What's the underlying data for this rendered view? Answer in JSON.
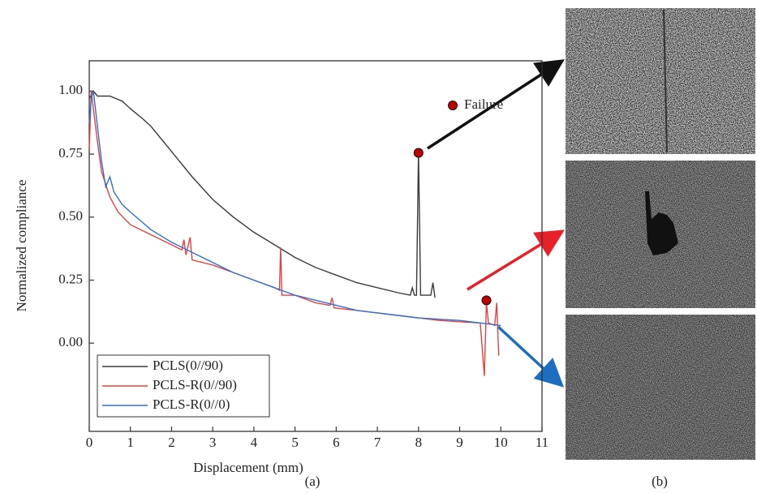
{
  "chart_data": {
    "type": "line",
    "xlabel": "Displacement (mm)",
    "ylabel": "Normalized compliance",
    "xlim": [
      0,
      11
    ],
    "ylim": [
      -0.35,
      1.12
    ],
    "xticks": [
      0,
      1,
      2,
      3,
      4,
      5,
      6,
      7,
      8,
      9,
      10,
      11
    ],
    "yticks": [
      {
        "value": 0,
        "label": "0.00"
      },
      {
        "value": 0.25,
        "label": "0.25"
      },
      {
        "value": 0.5,
        "label": "0.50"
      },
      {
        "value": 0.75,
        "label": "0.75"
      },
      {
        "value": 1,
        "label": "1.00"
      }
    ],
    "legend": "lower left",
    "series": [
      {
        "name": "PCLS(0//90)",
        "color": "#3a3a3a",
        "x": [
          0,
          0.1,
          0.2,
          0.5,
          0.8,
          1.0,
          1.3,
          1.5,
          1.8,
          2.0,
          2.5,
          3.0,
          3.5,
          4.0,
          4.5,
          5.0,
          5.5,
          6.0,
          6.5,
          7.0,
          7.5,
          7.8,
          7.85,
          7.9,
          7.95,
          8.0,
          8.05,
          8.3,
          8.35,
          8.4
        ],
        "values": [
          0.97,
          1.0,
          0.98,
          0.98,
          0.96,
          0.93,
          0.89,
          0.86,
          0.8,
          0.76,
          0.66,
          0.57,
          0.5,
          0.44,
          0.39,
          0.34,
          0.3,
          0.27,
          0.24,
          0.22,
          0.2,
          0.19,
          0.22,
          0.19,
          0.19,
          0.76,
          0.19,
          0.19,
          0.24,
          0.18
        ]
      },
      {
        "name": "PCLS-R(0//90)",
        "color": "#e8413c",
        "x": [
          0,
          0.05,
          0.1,
          0.2,
          0.3,
          0.5,
          0.7,
          1.0,
          1.5,
          2.0,
          2.25,
          2.3,
          2.35,
          2.45,
          2.5,
          3.0,
          3.5,
          4.0,
          4.5,
          4.62,
          4.65,
          4.68,
          5.0,
          5.5,
          5.85,
          5.9,
          5.95,
          6.5,
          7.0,
          7.5,
          8.0,
          8.5,
          9.0,
          9.5,
          9.6,
          9.65,
          9.7,
          9.85,
          9.9,
          9.95
        ],
        "values": [
          0.77,
          1.0,
          0.93,
          0.8,
          0.68,
          0.58,
          0.52,
          0.47,
          0.43,
          0.39,
          0.37,
          0.41,
          0.35,
          0.42,
          0.33,
          0.31,
          0.28,
          0.25,
          0.22,
          0.21,
          0.38,
          0.19,
          0.19,
          0.16,
          0.15,
          0.18,
          0.14,
          0.13,
          0.12,
          0.11,
          0.1,
          0.09,
          0.085,
          0.08,
          -0.13,
          0.16,
          0.08,
          0.07,
          0.16,
          -0.05
        ]
      },
      {
        "name": "PCLS-R(0//0)",
        "color": "#2f6fd6",
        "x": [
          0,
          0.05,
          0.1,
          0.2,
          0.3,
          0.4,
          0.5,
          0.6,
          0.8,
          1.0,
          1.5,
          2.0,
          2.5,
          3.0,
          3.5,
          4.0,
          4.5,
          5.0,
          5.5,
          6.0,
          6.5,
          7.0,
          7.5,
          8.0,
          8.5,
          9.0,
          9.5,
          10.0
        ],
        "values": [
          0.87,
          0.97,
          1.0,
          0.86,
          0.72,
          0.62,
          0.66,
          0.6,
          0.55,
          0.52,
          0.45,
          0.4,
          0.36,
          0.32,
          0.28,
          0.25,
          0.22,
          0.19,
          0.17,
          0.15,
          0.13,
          0.12,
          0.11,
          0.1,
          0.095,
          0.09,
          0.08,
          0.07
        ]
      }
    ],
    "failure": {
      "label": "Failure",
      "color": "#c00000",
      "x": [
        8.0,
        9.65
      ],
      "y": [
        0.755,
        0.17
      ]
    },
    "panel_labels": [
      "(a)",
      "(b)"
    ]
  }
}
